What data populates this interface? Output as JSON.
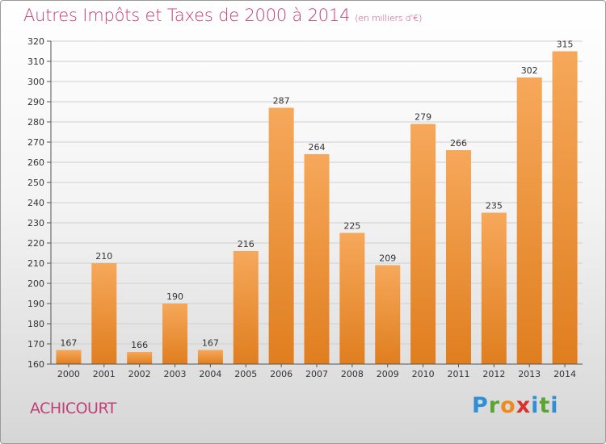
{
  "header": {
    "title": "Autres Impôts et Taxes de 2000 à 2014",
    "unit": "(en milliers d'€)"
  },
  "footer": {
    "commune": "ACHICOURT",
    "logo": [
      "P",
      "r",
      "o",
      "x",
      "i",
      "t",
      "i"
    ]
  },
  "colors": {
    "title": "#c0407a",
    "bar_light": "#f6a85a",
    "bar_dark": "#e07e1f",
    "grid": "#cfcfcf"
  },
  "chart_data": {
    "type": "bar",
    "categories": [
      "2000",
      "2001",
      "2002",
      "2003",
      "2004",
      "2005",
      "2006",
      "2007",
      "2008",
      "2009",
      "2010",
      "2011",
      "2012",
      "2013",
      "2014"
    ],
    "values": [
      167,
      210,
      166,
      190,
      167,
      216,
      287,
      264,
      225,
      209,
      279,
      266,
      235,
      302,
      315
    ],
    "ylim": [
      160,
      320
    ],
    "ytick_step": 10,
    "grid": true
  }
}
